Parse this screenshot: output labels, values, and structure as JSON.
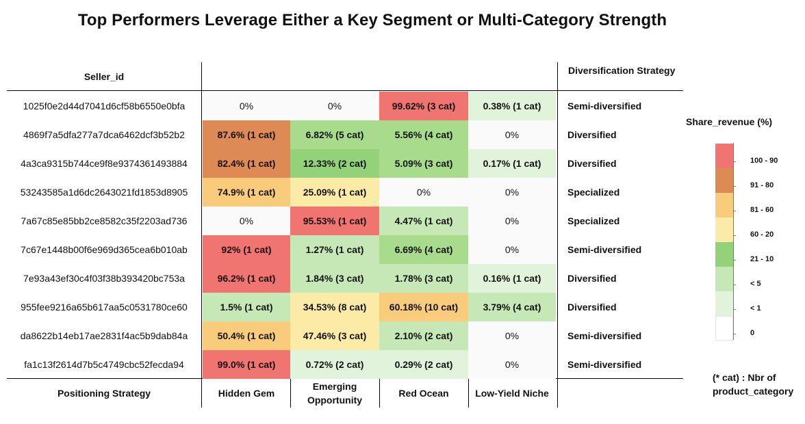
{
  "chart_data": {
    "type": "table",
    "title": "Top Performers Leverage Either a Key Segment or Multi-Category Strength",
    "row_header": "Seller_id",
    "strategy_header": "Diversification Strategy",
    "footer_label": "Positioning Strategy",
    "columns": [
      "Hidden Gem",
      "Emerging Opportunity",
      "Red Ocean",
      "Low-Yield Niche"
    ],
    "rows": [
      {
        "seller": "1025f0e2d44d7041d6cf58b6550e0bfa",
        "values": [
          "0%",
          "0%",
          "99.62% (3 cat)",
          "0.38% (1 cat)"
        ],
        "colors": [
          "#fafafa",
          "#fafafa",
          "#f07470",
          "#e2f3dc"
        ],
        "strategy": "Semi-diversified"
      },
      {
        "seller": "4869f7a5dfa277a7dca6462dcf3b52b2",
        "values": [
          "87.6% (1 cat)",
          "6.82% (5 cat)",
          "5.56% (4 cat)",
          "0%"
        ],
        "colors": [
          "#dd8a55",
          "#a8dc8c",
          "#a8dc8c",
          "#fafafa"
        ],
        "strategy": "Diversified"
      },
      {
        "seller": "4a3ca9315b744ce9f8e9374361493884",
        "values": [
          "82.4% (1 cat)",
          "12.33%  (2 cat)",
          "5.09% (3 cat)",
          "0.17% (1 cat)"
        ],
        "colors": [
          "#dd8a55",
          "#94d27a",
          "#a8dc8c",
          "#e2f3dc"
        ],
        "strategy": "Diversified"
      },
      {
        "seller": "53243585a1d6dc2643021fd1853d8905",
        "values": [
          "74.9% (1 cat)",
          "25.09% (1 cat)",
          "0%",
          "0%"
        ],
        "colors": [
          "#f8cc7a",
          "#fbeba6",
          "#fafafa",
          "#fafafa"
        ],
        "strategy": "Specialized"
      },
      {
        "seller": "7a67c85e85bb2ce8582c35f2203ad736",
        "values": [
          "0%",
          "95.53% (1 cat)",
          "4.47% (1 cat)",
          "0%"
        ],
        "colors": [
          "#fafafa",
          "#f07470",
          "#c6e7b6",
          "#fafafa"
        ],
        "strategy": "Specialized"
      },
      {
        "seller": "7c67e1448b00f6e969d365cea6b010ab",
        "values": [
          "92% (1 cat)",
          "1.27% (1 cat)",
          "6.69% (4 cat)",
          "0%"
        ],
        "colors": [
          "#f07470",
          "#c6e7b6",
          "#a8dc8c",
          "#fafafa"
        ],
        "strategy": "Semi-diversified"
      },
      {
        "seller": "7e93a43ef30c4f03f38b393420bc753a",
        "values": [
          "96.2% (1 cat)",
          "1.84% (3 cat)",
          "1.78% (3 cat)",
          "0.16% (1 cat)"
        ],
        "colors": [
          "#f07470",
          "#c6e7b6",
          "#c6e7b6",
          "#e2f3dc"
        ],
        "strategy": "Diversified"
      },
      {
        "seller": "955fee9216a65b617aa5c0531780ce60",
        "values": [
          "1.5% (1 cat)",
          "34.53% (8 cat)",
          "60.18% (10 cat)",
          "3.79% (4 cat)"
        ],
        "colors": [
          "#c6e7b6",
          "#fbeba6",
          "#f8cc7a",
          "#c6e7b6"
        ],
        "strategy": "Diversified"
      },
      {
        "seller": "da8622b14eb17ae2831f4ac5b9dab84a",
        "values": [
          "50.4% (1 cat)",
          "47.46% (3 cat)",
          "2.10% (2 cat)",
          "0%"
        ],
        "colors": [
          "#f8cc7a",
          "#fbeba6",
          "#c6e7b6",
          "#fafafa"
        ],
        "strategy": "Semi-diversified"
      },
      {
        "seller": "fa1c13f2614d7b5c4749cbc52fecda94",
        "values": [
          "99.0% (1 cat)",
          "0.72% (2 cat)",
          "0.29% (2 cat)",
          "0%"
        ],
        "colors": [
          "#f07470",
          "#e2f3dc",
          "#e2f3dc",
          "#fafafa"
        ],
        "strategy": "Semi-diversified"
      }
    ],
    "legend": {
      "title": "Share_revenue (%)",
      "items": [
        {
          "label": "100 - 90",
          "color": "#f07470"
        },
        {
          "label": "91 - 80",
          "color": "#dd8a55"
        },
        {
          "label": "81 - 60",
          "color": "#f8cc7a"
        },
        {
          "label": "60 - 20",
          "color": "#fbeba6"
        },
        {
          "label": "21 - 10",
          "color": "#94d27a"
        },
        {
          "label": "< 5",
          "color": "#c6e7b6"
        },
        {
          "label": "< 1",
          "color": "#e2f3dc"
        },
        {
          "label": "0",
          "color": "#ffffff"
        }
      ],
      "note_line1": "(* cat) : Nbr of",
      "note_line2": "product_category"
    }
  }
}
